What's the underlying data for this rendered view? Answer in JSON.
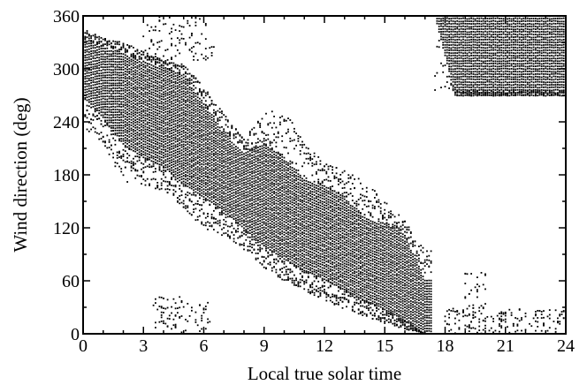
{
  "chart_data": {
    "type": "scatter",
    "title": "",
    "xlabel": "Local true solar time",
    "ylabel": "Wind direction (deg)",
    "xlim": [
      0,
      24
    ],
    "ylim": [
      0,
      360
    ],
    "x_ticks": [
      0,
      3,
      6,
      9,
      12,
      15,
      18,
      21,
      24
    ],
    "y_ticks": [
      0,
      60,
      120,
      180,
      240,
      300,
      360
    ],
    "grid": false,
    "legend": "none",
    "sampling_interval_hours": 0.1,
    "direction_spread_by_hour": [
      {
        "t": 0,
        "main_min": 270,
        "main_max": 335,
        "scatter_min": 235,
        "scatter_max": 345
      },
      {
        "t": 1,
        "main_min": 245,
        "main_max": 325,
        "scatter_min": 215,
        "scatter_max": 335
      },
      {
        "t": 2,
        "main_min": 215,
        "main_max": 318,
        "scatter_min": 172,
        "scatter_max": 330
      },
      {
        "t": 3,
        "main_min": 200,
        "main_max": 308,
        "scatter_min": 168,
        "scatter_max": 320
      },
      {
        "t": 4,
        "main_min": 190,
        "main_max": 302,
        "scatter_min": 162,
        "scatter_max": 310
      },
      {
        "t": 5,
        "main_min": 170,
        "main_max": 292,
        "scatter_min": 140,
        "scatter_max": 305
      },
      {
        "t": 6,
        "main_min": 155,
        "main_max": 262,
        "scatter_min": 120,
        "scatter_max": 280
      },
      {
        "t": 7,
        "main_min": 140,
        "main_max": 228,
        "scatter_min": 110,
        "scatter_max": 250
      },
      {
        "t": 8,
        "main_min": 120,
        "main_max": 205,
        "scatter_min": 95,
        "scatter_max": 220
      },
      {
        "t": 9,
        "main_min": 100,
        "main_max": 215,
        "scatter_min": 75,
        "scatter_max": 250
      },
      {
        "t": 10,
        "main_min": 85,
        "main_max": 200,
        "scatter_min": 60,
        "scatter_max": 255
      },
      {
        "t": 11,
        "main_min": 72,
        "main_max": 175,
        "scatter_min": 48,
        "scatter_max": 215
      },
      {
        "t": 12,
        "main_min": 62,
        "main_max": 168,
        "scatter_min": 38,
        "scatter_max": 195
      },
      {
        "t": 13,
        "main_min": 50,
        "main_max": 155,
        "scatter_min": 28,
        "scatter_max": 185
      },
      {
        "t": 14,
        "main_min": 38,
        "main_max": 132,
        "scatter_min": 20,
        "scatter_max": 175
      },
      {
        "t": 15,
        "main_min": 28,
        "main_max": 125,
        "scatter_min": 12,
        "scatter_max": 150
      },
      {
        "t": 16,
        "main_min": 15,
        "main_max": 112,
        "scatter_min": 5,
        "scatter_max": 128
      },
      {
        "t": 17,
        "main_min": 0,
        "main_max": 62,
        "scatter_min": 0,
        "scatter_max": 95
      }
    ],
    "evening_band": {
      "t_start": 17.5,
      "t_end": 24,
      "main_min": 270,
      "main_max": 360,
      "scatter_min": 275
    },
    "secondary_clusters": [
      {
        "t_start": 19,
        "t_end": 20,
        "min": 25,
        "max": 72
      },
      {
        "t_start": 18,
        "t_end": 24,
        "min": 0,
        "max": 30
      },
      {
        "t_start": 3.5,
        "t_end": 6.3,
        "min": 0,
        "max": 42
      },
      {
        "t_start": 3,
        "t_end": 6.5,
        "min": 310,
        "max": 360
      }
    ]
  }
}
